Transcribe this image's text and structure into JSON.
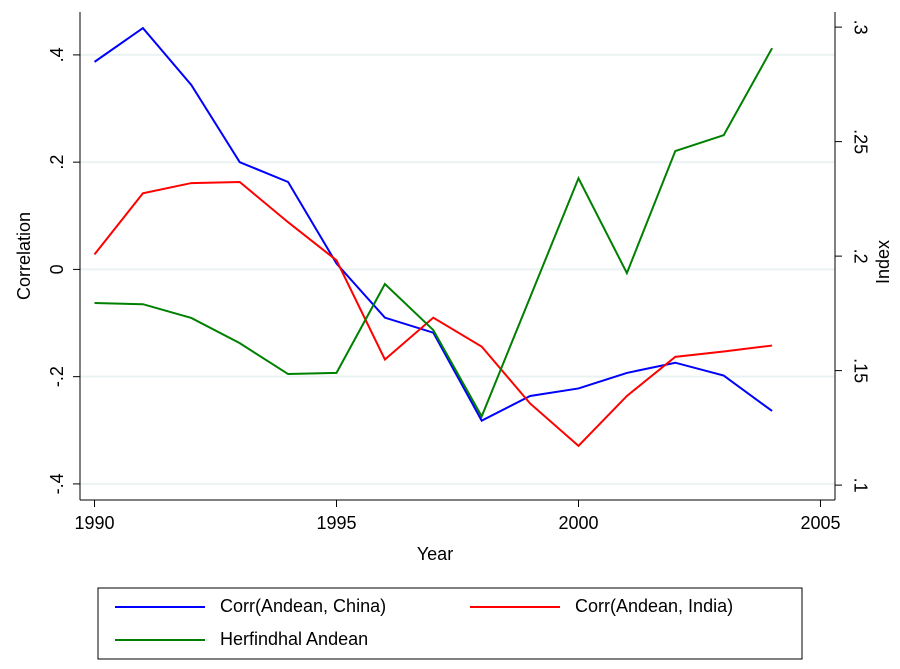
{
  "chart_data": {
    "type": "line",
    "x_label": "Year",
    "y_label": "Correlation",
    "y2_label": "Index",
    "x": [
      1990,
      1991,
      1992,
      1993,
      1994,
      1995,
      1996,
      1997,
      1998,
      1999,
      2000,
      2001,
      2002,
      2003,
      2004
    ],
    "xlim": [
      1989.7,
      2005.3
    ],
    "xticks": [
      1990,
      1995,
      2000,
      2005
    ],
    "ylim": [
      -0.43,
      0.48
    ],
    "yticks": [
      {
        "value": -0.4,
        "label": "-.4"
      },
      {
        "value": -0.2,
        "label": "-.2"
      },
      0,
      {
        "value": 0.2,
        "label": ".2"
      },
      {
        "value": 0.4,
        "label": ".4"
      }
    ],
    "y2lim": [
      0.0935,
      0.3066
    ],
    "y2ticks": [
      {
        "value": 0.1,
        "label": ".1"
      },
      {
        "value": 0.15,
        "label": ".15"
      },
      {
        "value": 0.2,
        "label": ".2"
      },
      {
        "value": 0.25,
        "label": ".25"
      },
      {
        "value": 0.3,
        "label": ".3"
      }
    ],
    "grid": true,
    "series": [
      {
        "name": "Corr(Andean, China)",
        "color": "#0000ff",
        "values": [
          0.387,
          0.45,
          0.344,
          0.2,
          0.163,
          0.011,
          -0.09,
          -0.118,
          -0.282,
          -0.236,
          -0.222,
          -0.193,
          -0.174,
          -0.198,
          -0.264
        ]
      },
      {
        "name": "Corr(Andean, India)",
        "color": "#ff0000",
        "values": [
          0.028,
          0.142,
          0.161,
          0.163,
          0.088,
          0.017,
          -0.168,
          -0.09,
          -0.144,
          -0.25,
          -0.329,
          -0.236,
          -0.163,
          -0.153,
          -0.142
        ]
      },
      {
        "name": "Herfindhal Andean",
        "color": "#008000",
        "axis": "y2",
        "values": [
          0.1795,
          0.179,
          0.173,
          0.162,
          0.1485,
          0.149,
          0.1878,
          0.1677,
          0.13,
          0.182,
          0.234,
          0.1926,
          0.2459,
          0.2528,
          0.2908
        ]
      }
    ]
  }
}
